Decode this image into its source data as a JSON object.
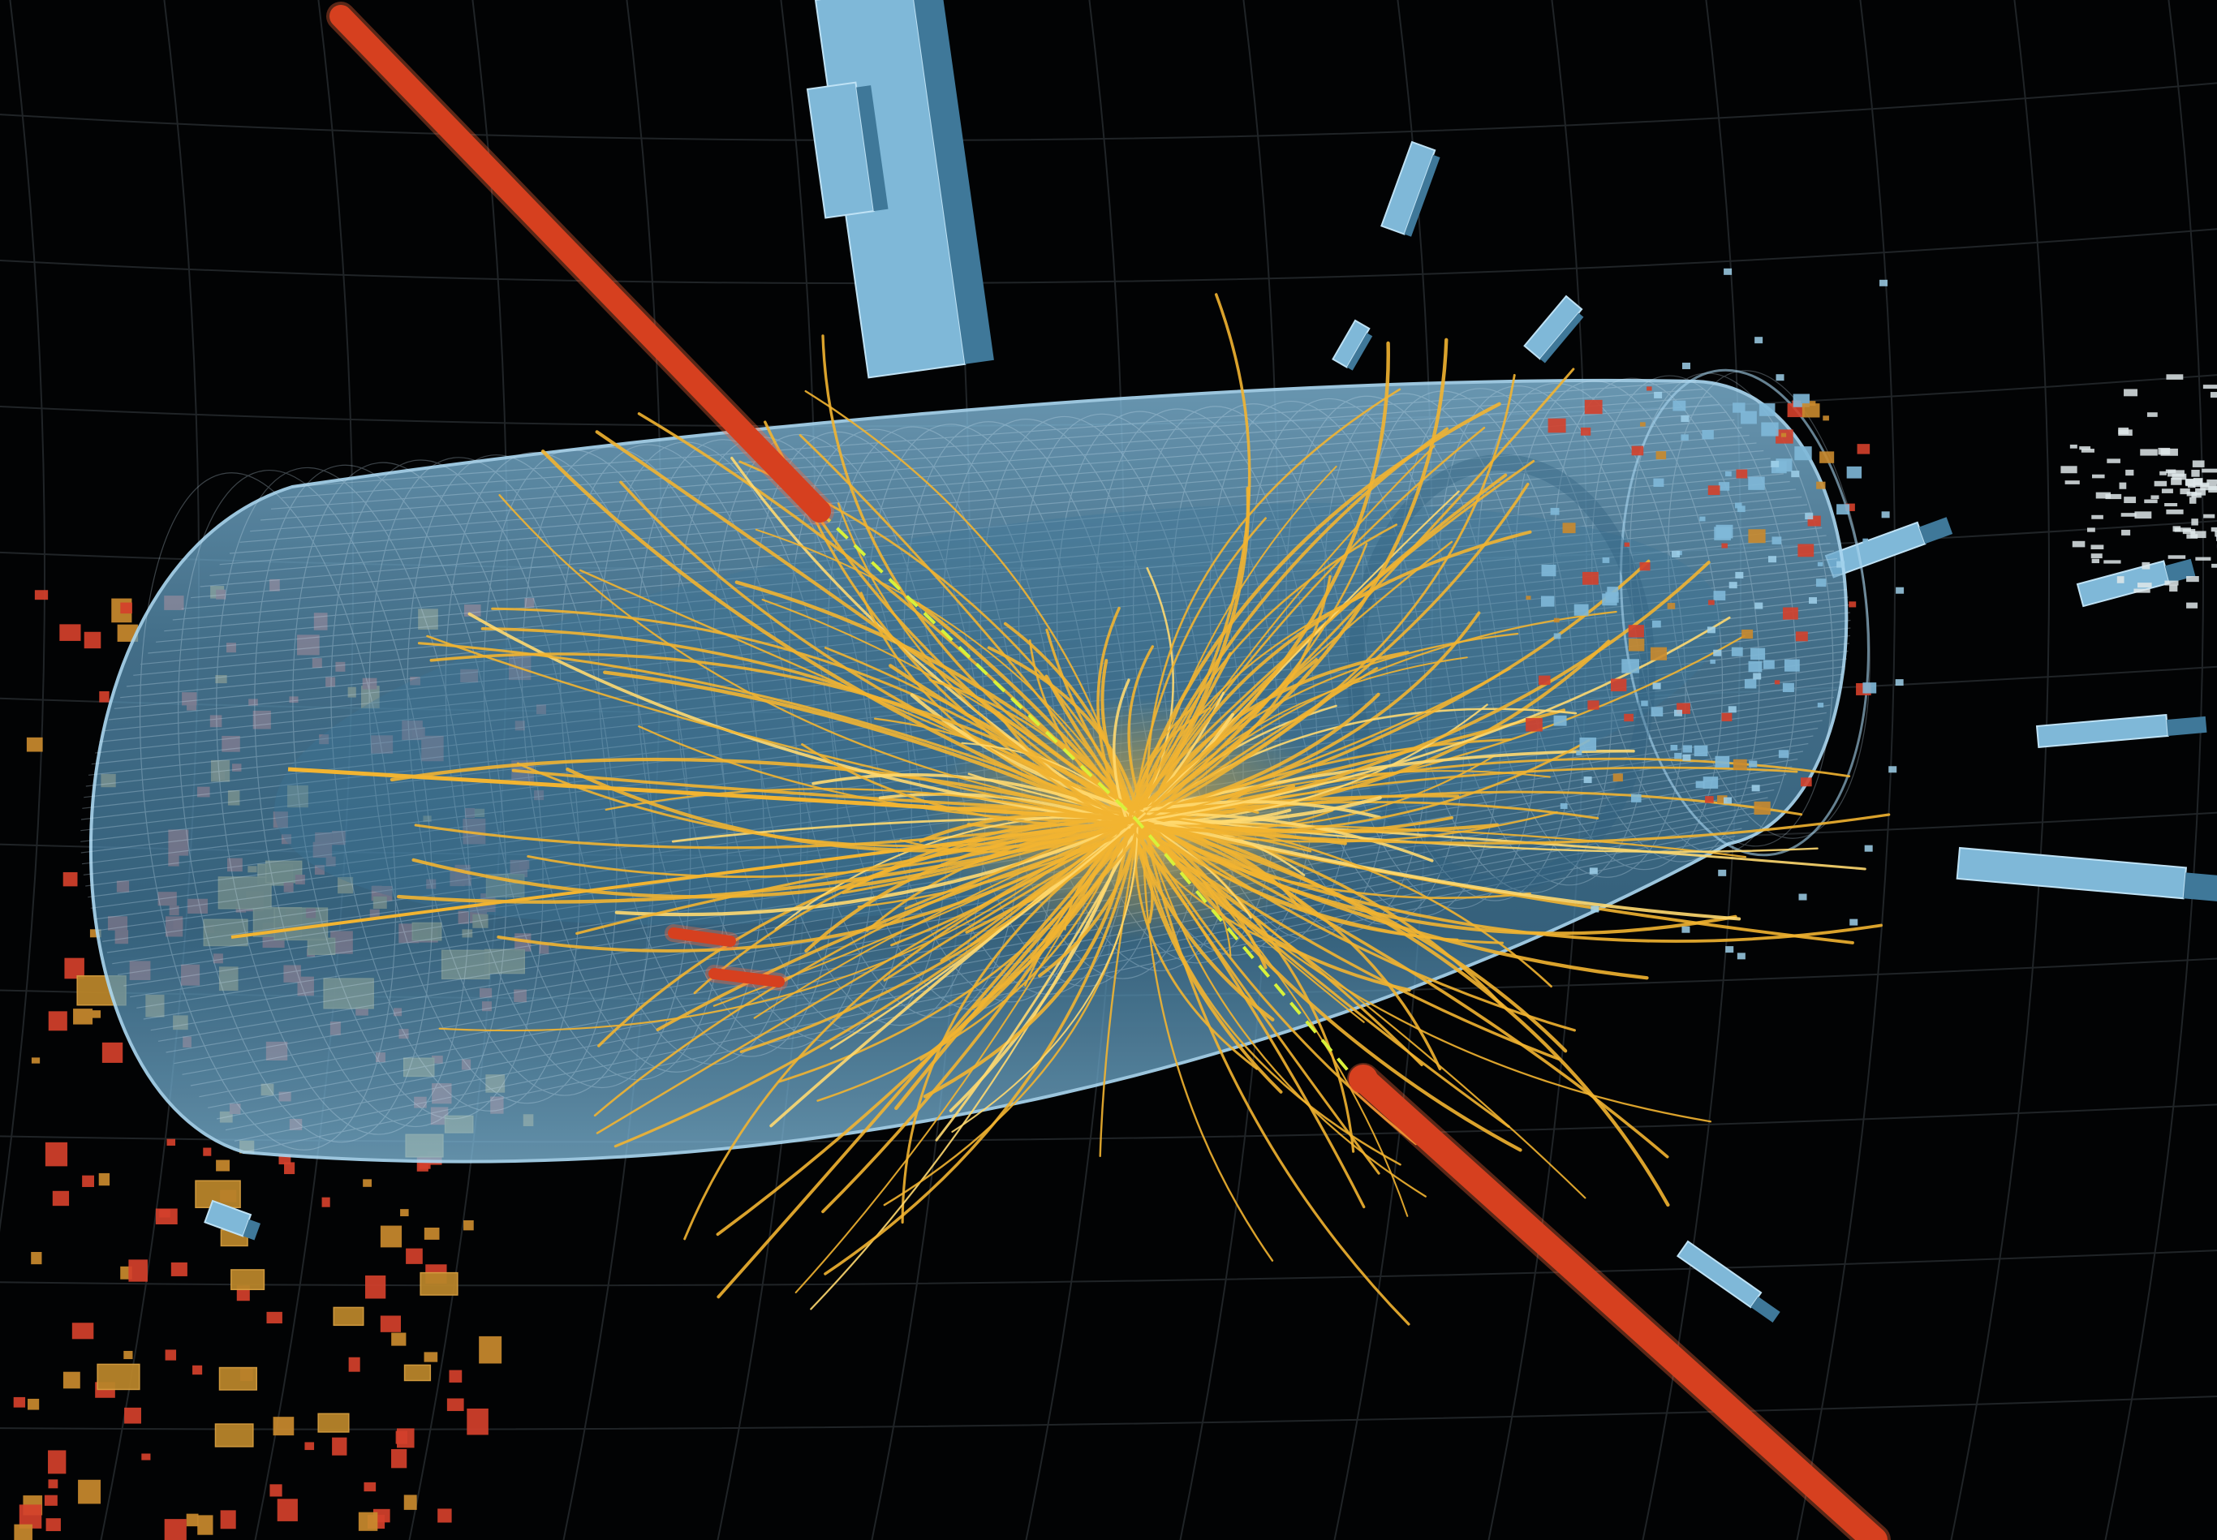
{
  "scene": {
    "colors": {
      "background": "#020304",
      "grid": "#2a2f33",
      "detector_fill": "#6fa7c9",
      "detector_edge": "#a9d6f0",
      "detector_mesh": "#cfe6f5",
      "tracks": "#f2b431",
      "tracks_bright": "#ffd970",
      "muon": "#d6401f",
      "muon_glow": "#ff6a3c",
      "vertex_dash": "#d8f23a",
      "calo_blue": "#7fb8d8",
      "calo_blue_dark": "#3f7899",
      "hits_red": "#d4402b",
      "hits_orange": "#c98a2e",
      "hits_white": "#dfe8ea"
    }
  }
}
